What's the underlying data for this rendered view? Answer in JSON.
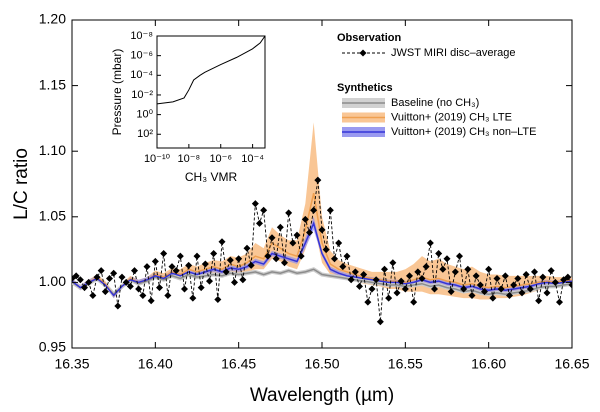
{
  "chart_data": [
    {
      "type": "line",
      "xlabel": "Wavelength (µm)",
      "ylabel": "L/C ratio",
      "xlim": [
        16.35,
        16.65
      ],
      "ylim": [
        0.95,
        1.2
      ],
      "xticks": [
        16.35,
        {
          "value": 16.4,
          "label": "16.40"
        },
        16.45,
        {
          "value": 16.5,
          "label": "16.50"
        },
        16.55,
        {
          "value": 16.6,
          "label": "16.60"
        },
        16.65
      ],
      "yticks": [
        0.95,
        {
          "value": 1,
          "label": "1.00"
        },
        1.05,
        {
          "value": 1.1,
          "label": "1.10"
        },
        1.15,
        {
          "value": 1.2,
          "label": "1.20"
        }
      ],
      "legend_titles": [
        "Observation",
        "Synthetics"
      ],
      "x": [
        16.35,
        16.355,
        16.36,
        16.365,
        16.37,
        16.375,
        16.38,
        16.385,
        16.39,
        16.395,
        16.4,
        16.405,
        16.41,
        16.415,
        16.42,
        16.425,
        16.43,
        16.435,
        16.44,
        16.445,
        16.45,
        16.455,
        16.46,
        16.465,
        16.47,
        16.475,
        16.48,
        16.485,
        16.49,
        16.495,
        16.5,
        16.505,
        16.51,
        16.515,
        16.52,
        16.525,
        16.53,
        16.535,
        16.54,
        16.545,
        16.55,
        16.555,
        16.56,
        16.565,
        16.57,
        16.575,
        16.58,
        16.585,
        16.59,
        16.595,
        16.6,
        16.605,
        16.61,
        16.615,
        16.62,
        16.625,
        16.63,
        16.635,
        16.64,
        16.645,
        16.65
      ],
      "series": [
        {
          "name": "JWST MIRI disc–average",
          "color": "#000000",
          "x": [
            16.35,
            16.3525,
            16.355,
            16.3575,
            16.36,
            16.3625,
            16.365,
            16.3675,
            16.37,
            16.3725,
            16.375,
            16.3775,
            16.38,
            16.3825,
            16.385,
            16.3875,
            16.39,
            16.3925,
            16.395,
            16.3975,
            16.4,
            16.4025,
            16.405,
            16.4075,
            16.41,
            16.4125,
            16.415,
            16.4175,
            16.42,
            16.4225,
            16.425,
            16.4275,
            16.43,
            16.4325,
            16.435,
            16.4375,
            16.44,
            16.4425,
            16.445,
            16.4475,
            16.45,
            16.4525,
            16.455,
            16.4575,
            16.46,
            16.4625,
            16.465,
            16.4675,
            16.47,
            16.4725,
            16.475,
            16.4775,
            16.48,
            16.4825,
            16.485,
            16.4875,
            16.49,
            16.4925,
            16.495,
            16.4975,
            16.5,
            16.5025,
            16.505,
            16.5075,
            16.51,
            16.5125,
            16.515,
            16.5175,
            16.52,
            16.5225,
            16.525,
            16.5275,
            16.53,
            16.5325,
            16.535,
            16.5375,
            16.54,
            16.5425,
            16.545,
            16.5475,
            16.55,
            16.5525,
            16.555,
            16.5575,
            16.56,
            16.5625,
            16.565,
            16.5675,
            16.57,
            16.5725,
            16.575,
            16.5775,
            16.58,
            16.5825,
            16.585,
            16.5875,
            16.59,
            16.5925,
            16.595,
            16.5975,
            16.6,
            16.6025,
            16.605,
            16.6075,
            16.61,
            16.6125,
            16.615,
            16.6175,
            16.62,
            16.6225,
            16.625,
            16.6275,
            16.63,
            16.6325,
            16.635,
            16.6375,
            16.64,
            16.6425,
            16.645,
            16.6475,
            16.65
          ],
          "values": [
            1.003,
            1.005,
            1.002,
            0.996,
            1.0,
            0.99,
            1.004,
            1.009,
            0.993,
            1.003,
            1.007,
            0.982,
            1.004,
            1.0,
            0.997,
            1.009,
            0.995,
            0.99,
            1.012,
            0.986,
            1.016,
            0.996,
            1.022,
            0.99,
            1.012,
            1.009,
            1.02,
            0.995,
            1.013,
            0.988,
            1.02,
            0.996,
            1.014,
            1.001,
            1.022,
            0.987,
            1.031,
            1.008,
            1.017,
            1.0,
            1.018,
            1.002,
            1.026,
            1.013,
            1.06,
            1.045,
            1.055,
            1.02,
            1.034,
            1.018,
            1.042,
            1.015,
            1.053,
            1.03,
            1.036,
            1.02,
            1.048,
            1.038,
            1.055,
            1.078,
            1.04,
            1.025,
            1.055,
            1.018,
            1.03,
            1.012,
            1.02,
            1.002,
            1.008,
            0.997,
            1.006,
            0.985,
            0.995,
            1.002,
            0.97,
            1.01,
            0.988,
            1.015,
            0.992,
            1.001,
            0.995,
            1.005,
            0.985,
            1.008,
            1.003,
            1.012,
            1.03,
            0.995,
            1.022,
            1.01,
            1.018,
            0.993,
            1.008,
            1.02,
            0.995,
            1.01,
            0.99,
            1.005,
            0.998,
            0.993,
            1.01,
            0.988,
            1.003,
            0.995,
            1.005,
            0.99,
            0.998,
            1.003,
            0.992,
            1.006,
            0.995,
            1.008,
            0.986,
            1.004,
            0.992,
            1.009,
            1.0,
            0.985,
            1.002,
            1.004,
            0.998
          ]
        },
        {
          "name": "Baseline (no CH₃)",
          "color": "#8c8c8c",
          "band_color": "#cccccc",
          "values": [
            1.0,
            0.996,
            0.999,
            1.003,
            0.998,
            0.991,
            0.997,
            1.002,
            0.999,
            1.001,
            1.004,
            1.002,
            1.005,
            1.003,
            1.006,
            1.004,
            1.005,
            1.006,
            1.005,
            1.007,
            1.006,
            1.007,
            1.008,
            1.006,
            1.008,
            1.007,
            1.009,
            1.007,
            1.008,
            1.01,
            1.006,
            1.005,
            1.004,
            1.003,
            1.002,
            1.001,
            1.0,
            0.999,
            0.998,
            0.998,
            0.997,
            0.998,
            0.999,
            0.997,
            0.998,
            0.996,
            0.995,
            0.993,
            0.994,
            0.992,
            0.991,
            0.992,
            0.991,
            0.992,
            0.993,
            0.994,
            0.996,
            0.997,
            0.997,
            0.998,
            0.999
          ]
        },
        {
          "name": "Vuitton+ (2019) CH₃ LTE",
          "color": "#f0a050",
          "band_color": "#f8c08a",
          "values": [
            1.001,
            0.996,
            1.0,
            1.004,
            0.999,
            0.99,
            0.997,
            1.003,
            1.0,
            1.002,
            1.006,
            1.004,
            1.008,
            1.006,
            1.01,
            1.008,
            1.01,
            1.012,
            1.01,
            1.014,
            1.012,
            1.015,
            1.02,
            1.018,
            1.03,
            1.026,
            1.022,
            1.02,
            1.04,
            1.068,
            1.03,
            1.014,
            1.01,
            1.008,
            1.006,
            1.004,
            1.003,
            1.002,
            1.001,
            1.001,
            1.0,
            1.002,
            1.004,
            1.002,
            1.003,
            1.001,
            1.0,
            0.998,
            0.999,
            0.997,
            0.996,
            0.997,
            0.996,
            0.997,
            0.998,
            0.999,
            1.0,
            1.001,
            1.0,
            1.001,
            1.002
          ],
          "upper": [
            1.003,
            0.998,
            1.002,
            1.006,
            1.001,
            0.992,
            0.999,
            1.005,
            1.002,
            1.004,
            1.009,
            1.007,
            1.011,
            1.01,
            1.014,
            1.012,
            1.015,
            1.017,
            1.016,
            1.02,
            1.019,
            1.022,
            1.03,
            1.026,
            1.042,
            1.036,
            1.032,
            1.032,
            1.06,
            1.122,
            1.05,
            1.024,
            1.017,
            1.014,
            1.012,
            1.01,
            1.008,
            1.008,
            1.008,
            1.008,
            1.01,
            1.014,
            1.02,
            1.016,
            1.018,
            1.014,
            1.012,
            1.01,
            1.012,
            1.008,
            1.006,
            1.006,
            1.005,
            1.005,
            1.005,
            1.005,
            1.005,
            1.005,
            1.004,
            1.004,
            1.004
          ],
          "lower": [
            0.999,
            0.994,
            0.998,
            1.002,
            0.997,
            0.988,
            0.995,
            1.001,
            0.998,
            1.0,
            1.003,
            1.001,
            1.005,
            1.002,
            1.006,
            1.004,
            1.005,
            1.007,
            1.004,
            1.008,
            1.005,
            1.008,
            1.01,
            1.01,
            1.018,
            1.016,
            1.012,
            1.01,
            1.025,
            1.045,
            1.015,
            1.006,
            1.004,
            1.002,
            1.001,
            0.999,
            0.998,
            0.997,
            0.995,
            0.995,
            0.993,
            0.993,
            0.993,
            0.991,
            0.991,
            0.99,
            0.989,
            0.988,
            0.988,
            0.987,
            0.987,
            0.988,
            0.988,
            0.989,
            0.99,
            0.992,
            0.994,
            0.996,
            0.996,
            0.998,
            0.999
          ]
        },
        {
          "name": "Vuitton+ (2019) CH₃ non–LTE",
          "color": "#3434d8",
          "band_color": "#8f8fee",
          "values": [
            1.001,
            0.996,
            1.0,
            1.003,
            0.998,
            0.99,
            0.997,
            1.002,
            1.0,
            1.002,
            1.005,
            1.003,
            1.007,
            1.005,
            1.008,
            1.006,
            1.008,
            1.01,
            1.008,
            1.011,
            1.01,
            1.012,
            1.016,
            1.014,
            1.022,
            1.02,
            1.018,
            1.016,
            1.03,
            1.045,
            1.022,
            1.01,
            1.007,
            1.005,
            1.004,
            1.003,
            1.002,
            1.001,
            1.0,
            1.0,
            0.999,
            1.0,
            1.002,
            1.0,
            1.001,
            0.999,
            0.998,
            0.996,
            0.997,
            0.995,
            0.994,
            0.995,
            0.994,
            0.995,
            0.996,
            0.997,
            0.999,
            1.0,
            0.999,
            1.0,
            1.001
          ],
          "upper": [
            1.003,
            0.998,
            1.002,
            1.005,
            1.0,
            0.992,
            0.999,
            1.004,
            1.002,
            1.004,
            1.007,
            1.005,
            1.009,
            1.007,
            1.01,
            1.008,
            1.01,
            1.012,
            1.01,
            1.013,
            1.012,
            1.014,
            1.018,
            1.016,
            1.024,
            1.022,
            1.02,
            1.018,
            1.034,
            1.05,
            1.024,
            1.012,
            1.009,
            1.007,
            1.006,
            1.005,
            1.004,
            1.003,
            1.002,
            1.002,
            1.001,
            1.002,
            1.004,
            1.002,
            1.003,
            1.001,
            1.0,
            0.998,
            0.999,
            0.997,
            0.996,
            0.997,
            0.996,
            0.997,
            0.998,
            0.999,
            1.001,
            1.002,
            1.001,
            1.002,
            1.003
          ],
          "lower": [
            0.999,
            0.994,
            0.998,
            1.001,
            0.996,
            0.988,
            0.995,
            1.0,
            0.998,
            1.0,
            1.003,
            1.001,
            1.005,
            1.003,
            1.006,
            1.004,
            1.006,
            1.008,
            1.006,
            1.009,
            1.008,
            1.01,
            1.014,
            1.012,
            1.02,
            1.018,
            1.016,
            1.014,
            1.026,
            1.04,
            1.02,
            1.008,
            1.005,
            1.003,
            1.002,
            1.001,
            1.0,
            0.999,
            0.998,
            0.998,
            0.997,
            0.998,
            1.0,
            0.998,
            0.999,
            0.997,
            0.996,
            0.994,
            0.995,
            0.993,
            0.992,
            0.993,
            0.992,
            0.993,
            0.994,
            0.995,
            0.997,
            0.998,
            0.997,
            0.998,
            0.999
          ]
        }
      ]
    },
    {
      "type": "line",
      "log_x": true,
      "log_y": true,
      "xlabel": "CH₃ VMR",
      "ylabel": "Pressure (mbar)",
      "xlim": [
        1e-10,
        0.0006
      ],
      "ylim": [
        2500,
        1e-08
      ],
      "xticks": [
        {
          "value": 1e-10,
          "label": "10⁻¹⁰"
        },
        {
          "value": 1e-08,
          "label": "10⁻⁸"
        },
        {
          "value": 1e-06,
          "label": "10⁻⁶"
        },
        {
          "value": 0.0001,
          "label": "10⁻⁴"
        }
      ],
      "yticks": [
        {
          "value": 1e-08,
          "label": "10⁻⁸"
        },
        {
          "value": 1e-06,
          "label": "10⁻⁶"
        },
        {
          "value": 0.0001,
          "label": "10⁻⁴"
        },
        {
          "value": 0.01,
          "label": "10⁻²"
        },
        {
          "value": 1,
          "label": "10⁰"
        },
        {
          "value": 100,
          "label": "10²"
        }
      ],
      "x": [
        1e-10,
        1e-09,
        5e-09,
        1e-08,
        2e-08,
        5e-08,
        1e-07,
        1e-06,
        1e-05,
        0.0001,
        0.0003,
        0.0006
      ],
      "values": [
        0.08,
        0.05,
        0.02,
        0.003,
        0.0003,
        0.0001,
        5e-05,
        8e-06,
        1.5e-06,
        2e-07,
        5e-08,
        1e-08
      ],
      "color": "#000000"
    }
  ]
}
